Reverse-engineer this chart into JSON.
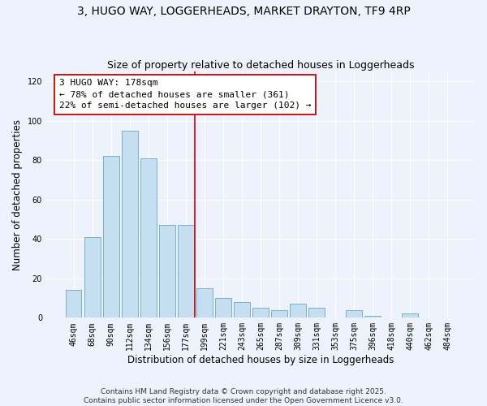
{
  "title": "3, HUGO WAY, LOGGERHEADS, MARKET DRAYTON, TF9 4RP",
  "subtitle": "Size of property relative to detached houses in Loggerheads",
  "xlabel": "Distribution of detached houses by size in Loggerheads",
  "ylabel": "Number of detached properties",
  "bar_labels": [
    "46sqm",
    "68sqm",
    "90sqm",
    "112sqm",
    "134sqm",
    "156sqm",
    "177sqm",
    "199sqm",
    "221sqm",
    "243sqm",
    "265sqm",
    "287sqm",
    "309sqm",
    "331sqm",
    "353sqm",
    "375sqm",
    "396sqm",
    "418sqm",
    "440sqm",
    "462sqm",
    "484sqm"
  ],
  "bar_values": [
    14,
    41,
    82,
    95,
    81,
    47,
    47,
    15,
    10,
    8,
    5,
    4,
    7,
    5,
    0,
    4,
    1,
    0,
    2,
    0,
    0
  ],
  "bar_color": "#c6dff0",
  "bar_edge_color": "#7ab0cc",
  "vline_color": "#cc0000",
  "annotation_title": "3 HUGO WAY: 178sqm",
  "annotation_line1": "← 78% of detached houses are smaller (361)",
  "annotation_line2": "22% of semi-detached houses are larger (102) →",
  "annotation_box_color": "white",
  "annotation_box_edge": "#cc0000",
  "ylim": [
    0,
    125
  ],
  "yticks": [
    0,
    20,
    40,
    60,
    80,
    100,
    120
  ],
  "background_color": "#eef2fc",
  "grid_color": "white",
  "footer1": "Contains HM Land Registry data © Crown copyright and database right 2025.",
  "footer2": "Contains public sector information licensed under the Open Government Licence v3.0.",
  "title_fontsize": 10,
  "subtitle_fontsize": 9,
  "label_fontsize": 8.5,
  "tick_fontsize": 7,
  "annotation_fontsize": 8,
  "footer_fontsize": 6.5
}
